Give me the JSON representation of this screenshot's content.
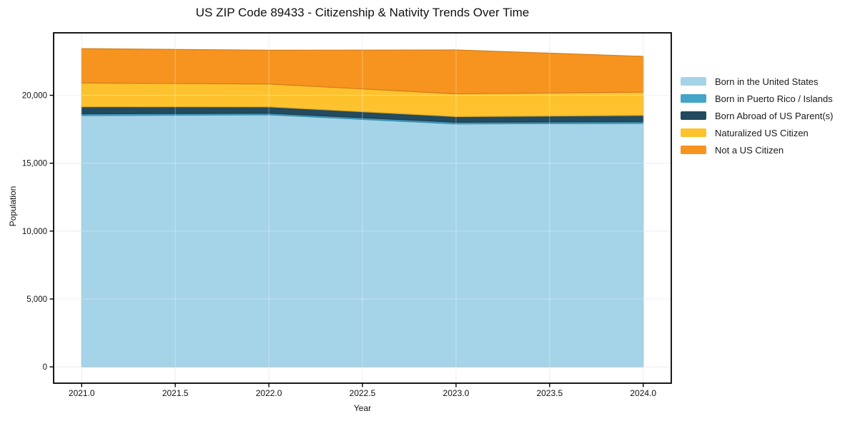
{
  "chart_data": {
    "type": "area",
    "stacked": true,
    "title": "US ZIP Code 89433 - Citizenship & Nativity Trends Over Time",
    "xlabel": "Year",
    "ylabel": "Population",
    "x": [
      2021,
      2022,
      2023,
      2024
    ],
    "series": [
      {
        "name": "Born in the United States",
        "color": "#a5d3e8",
        "values": [
          18510,
          18560,
          17890,
          17930
        ]
      },
      {
        "name": "Born in Puerto Rico / Islands",
        "color": "#44a5c7",
        "values": [
          120,
          115,
          120,
          120
        ]
      },
      {
        "name": "Born Abroad of US Parent(s)",
        "color": "#234a5e",
        "values": [
          525,
          475,
          420,
          470
        ]
      },
      {
        "name": "Naturalized US Citizen",
        "color": "#fdc22e",
        "values": [
          1750,
          1680,
          1680,
          1715
        ]
      },
      {
        "name": "Not a US Citizen",
        "color": "#f7941f",
        "values": [
          2530,
          2490,
          3230,
          2630
        ]
      }
    ],
    "xticks": [
      2021.0,
      2021.5,
      2022.0,
      2022.5,
      2023.0,
      2023.5,
      2024.0
    ],
    "xtick_labels": [
      "2021.0",
      "2021.5",
      "2022.0",
      "2022.5",
      "2023.0",
      "2023.5",
      "2024.0"
    ],
    "yticks": [
      0,
      5000,
      10000,
      15000,
      20000
    ],
    "ytick_labels": [
      "0",
      "5,000",
      "10,000",
      "15,000",
      "20,000"
    ],
    "xlim": [
      2020.85,
      2024.15
    ],
    "ylim": [
      -1200,
      24600
    ],
    "grid": true,
    "legend_position": "right-outside",
    "frame_color": "#000000",
    "grid_color": "#e8e8e8"
  }
}
